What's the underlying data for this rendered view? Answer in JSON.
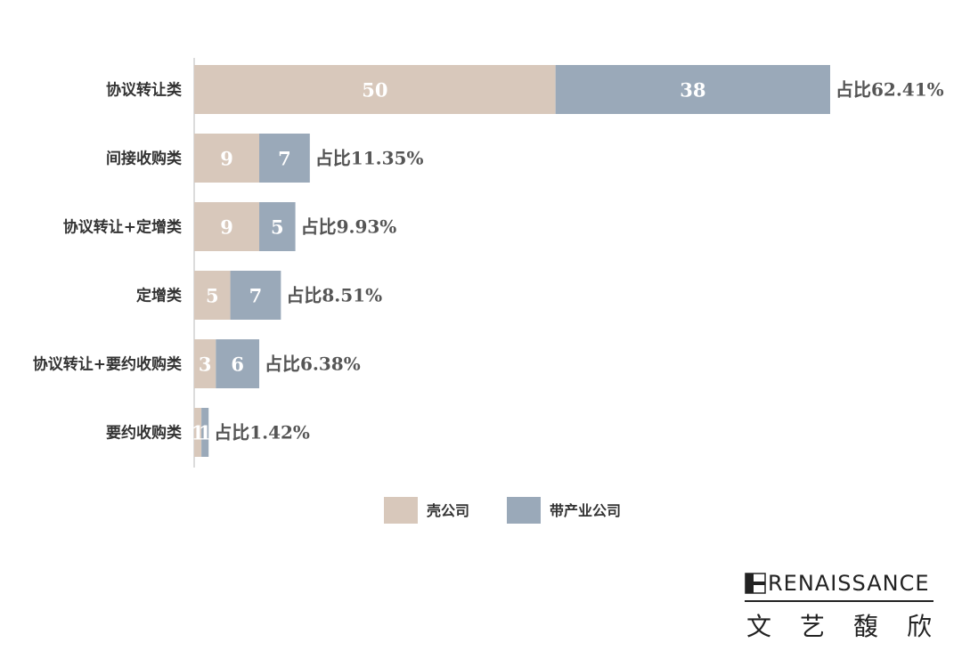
{
  "chart_data": {
    "type": "bar",
    "orientation": "horizontal",
    "stacked": true,
    "categories": [
      "协议转让类",
      "间接收购类",
      "协议转让+定增类",
      "定增类",
      "协议转让+要约收购类",
      "要约收购类"
    ],
    "series": [
      {
        "name": "壳公司",
        "values": [
          50,
          9,
          9,
          5,
          3,
          1
        ],
        "color": "#d8c8bb"
      },
      {
        "name": "带产业公司",
        "values": [
          38,
          7,
          5,
          7,
          6,
          1
        ],
        "color": "#9aa9b9"
      }
    ],
    "data_labels": [
      [
        "50",
        "9",
        "9",
        "5",
        "3",
        "1"
      ],
      [
        "38",
        "7",
        "5",
        "7",
        "6",
        "1"
      ]
    ],
    "share_labels": [
      "占比62.41%",
      "占比11.35%",
      "占比9.93%",
      "占比8.51%",
      "占比6.38%",
      "占比1.42%"
    ],
    "xlim": [
      0,
      88
    ],
    "grid": false,
    "legend_position": "bottom"
  },
  "logo": {
    "wordmark": "RENAISSANCE",
    "chinese": [
      "文",
      "艺",
      "馥",
      "欣"
    ]
  }
}
